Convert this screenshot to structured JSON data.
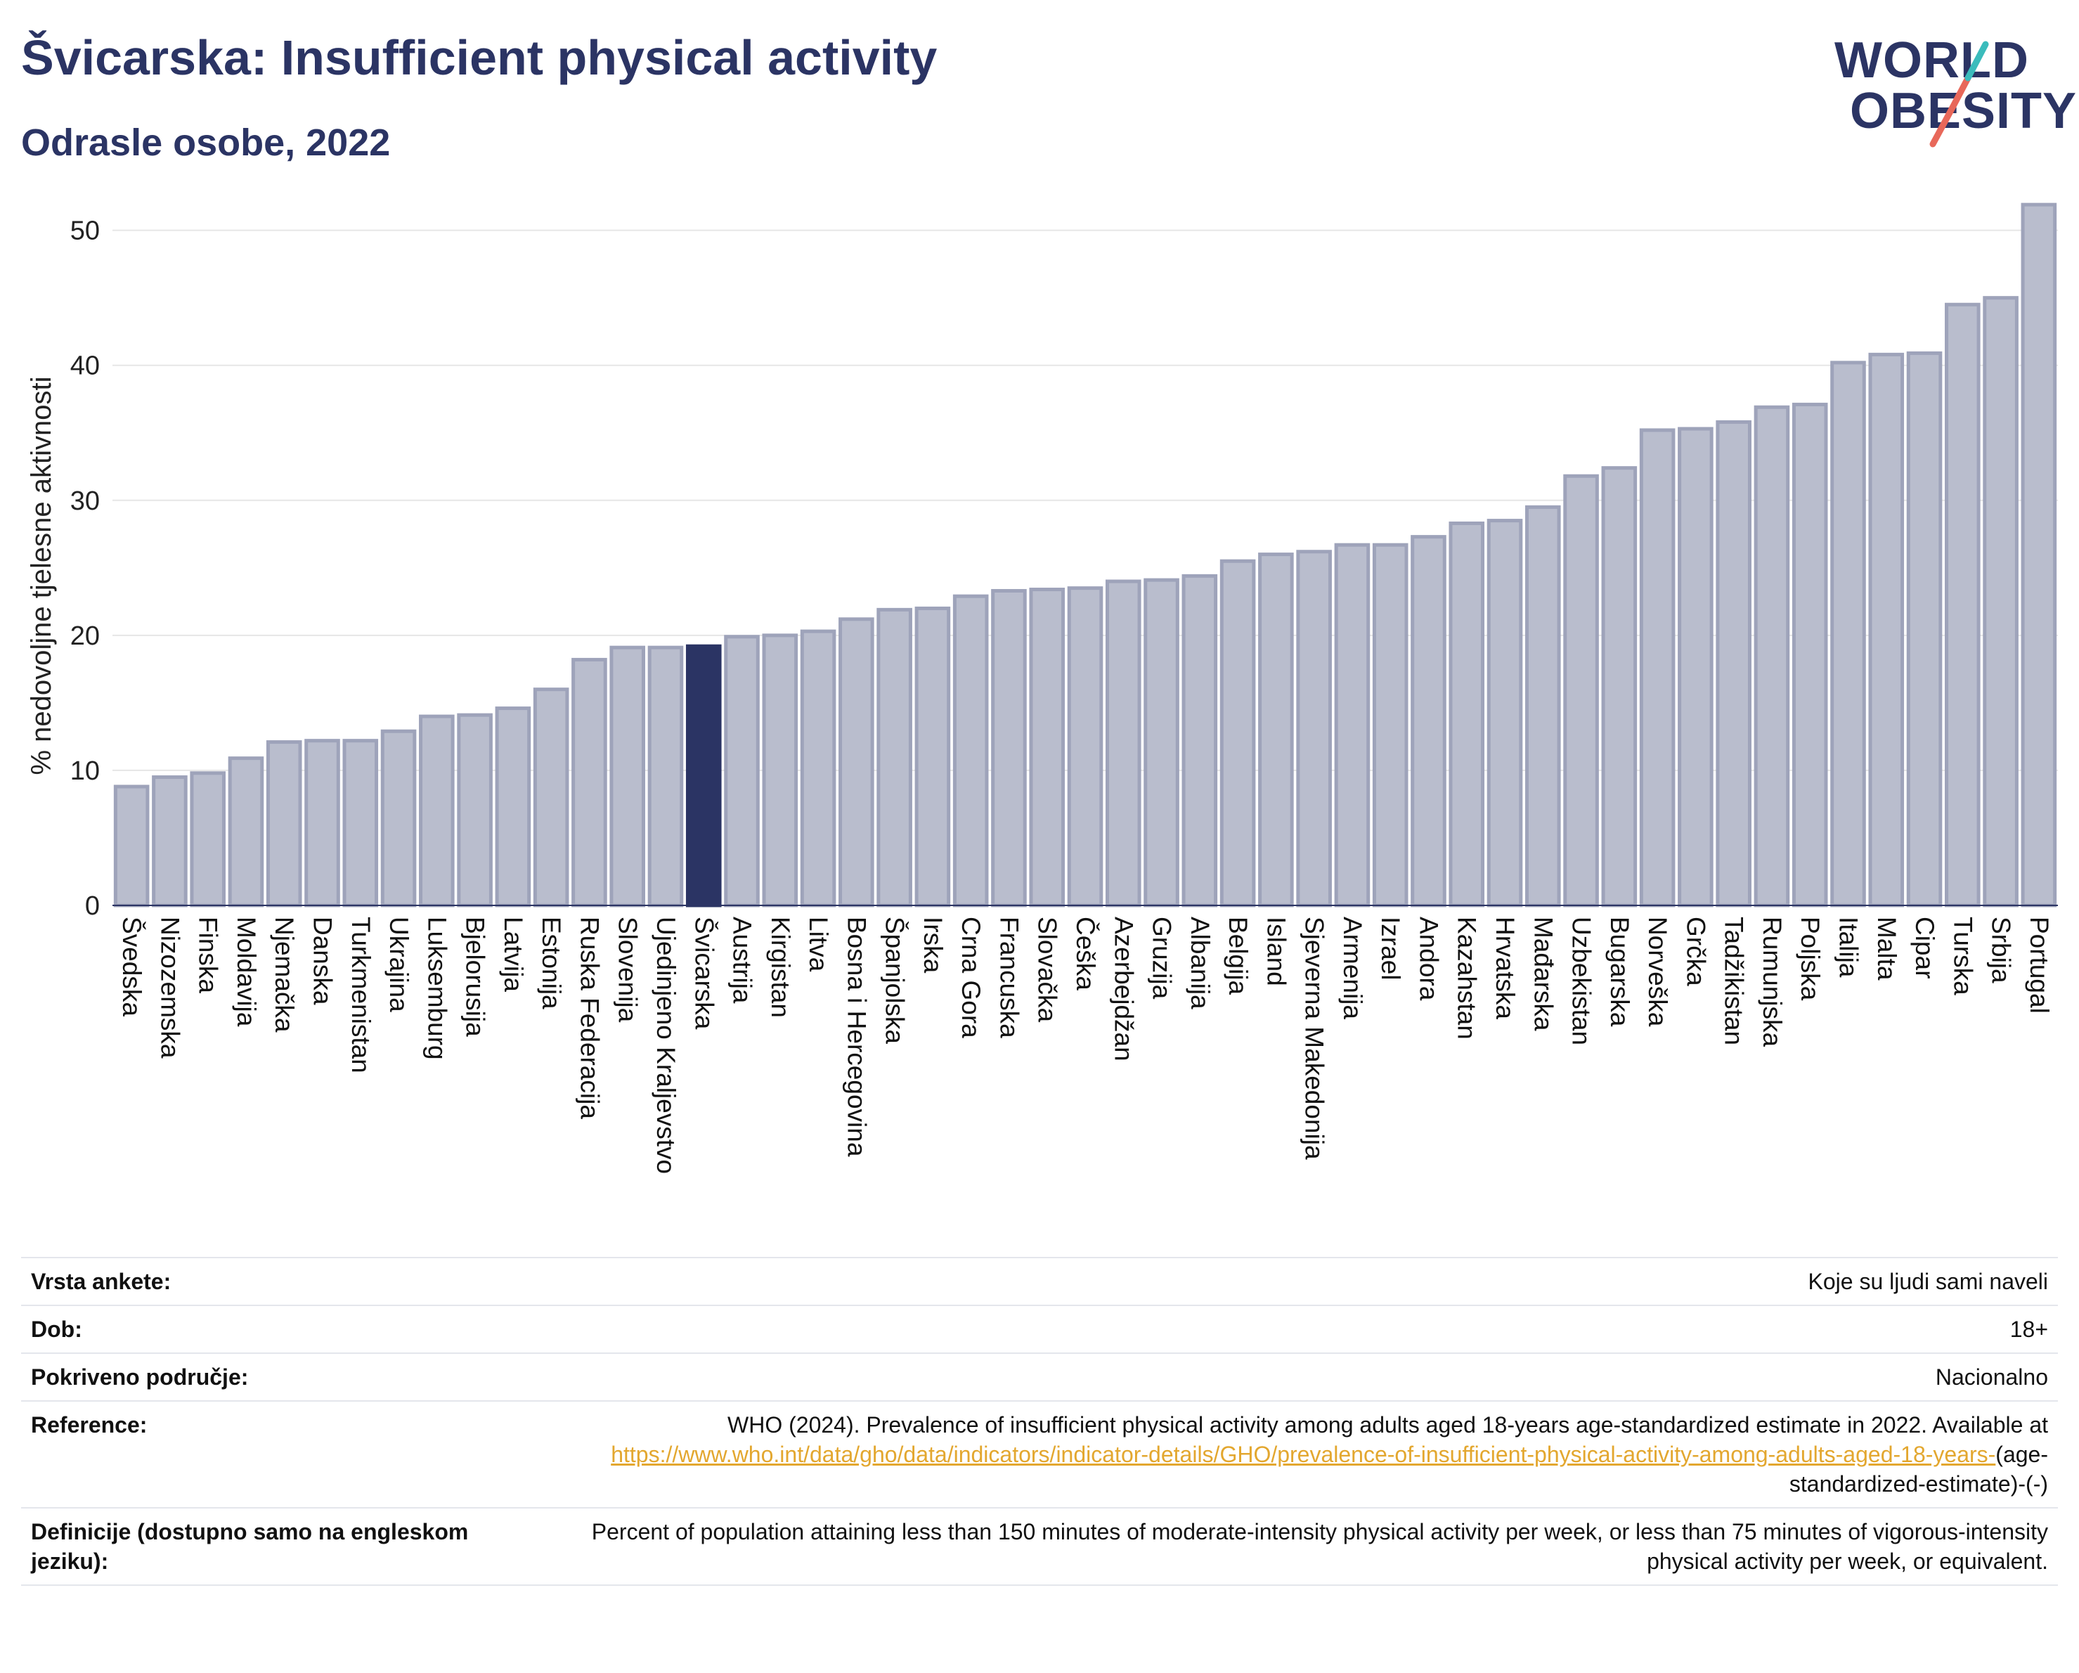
{
  "title": "Švicarska: Insufficient physical activity",
  "subtitle": "Odrasle osobe, 2022",
  "logo": {
    "line1": "WORLD",
    "line2": "OBESITY",
    "accent_colors": [
      "#3bbcbc",
      "#e8685a"
    ]
  },
  "colors": {
    "bar": "#b9bdcd",
    "bar_edge": "#9ea3ba",
    "highlight": "#2b3464",
    "grid": "#e6e6e6"
  },
  "chart_data": {
    "type": "bar",
    "ylabel": "% nedovoljne tjelesne aktivnosti",
    "ylim": [
      0,
      53
    ],
    "yticks": [
      0,
      10,
      20,
      30,
      40,
      50
    ],
    "grid": true,
    "highlight": "Švicarska",
    "categories": [
      "Švedska",
      "Nizozemska",
      "Finska",
      "Moldavija",
      "Njemačka",
      "Danska",
      "Turkmenistan",
      "Ukrajina",
      "Luksemburg",
      "Bjelorusija",
      "Latvija",
      "Estonija",
      "Ruska Federacija",
      "Slovenija",
      "Ujedinjeno Kraljevstvo",
      "Švicarska",
      "Austrija",
      "Kirgistan",
      "Litva",
      "Bosna i Hercegovina",
      "Španjolska",
      "Irska",
      "Crna Gora",
      "Francuska",
      "Slovačka",
      "Češka",
      "Azerbejdžan",
      "Gruzija",
      "Albanija",
      "Belgija",
      "Island",
      "Sjeverna Makedonija",
      "Armenija",
      "Izrael",
      "Andora",
      "Kazahstan",
      "Hrvatska",
      "Mađarska",
      "Uzbekistan",
      "Bugarska",
      "Norveška",
      "Grčka",
      "Tadžikistan",
      "Rumunjska",
      "Poljska",
      "Italija",
      "Malta",
      "Cipar",
      "Turska",
      "Srbija",
      "Portugal"
    ],
    "values": [
      8.8,
      9.5,
      9.8,
      10.9,
      12.1,
      12.2,
      12.2,
      12.9,
      14.0,
      14.1,
      14.6,
      16.0,
      18.2,
      19.1,
      19.1,
      19.2,
      19.9,
      20.0,
      20.3,
      21.2,
      21.9,
      22.0,
      22.9,
      23.3,
      23.4,
      23.5,
      24.0,
      24.1,
      24.4,
      25.5,
      26.0,
      26.2,
      26.7,
      26.7,
      27.3,
      28.3,
      28.5,
      29.5,
      31.8,
      32.4,
      35.2,
      35.3,
      35.8,
      36.9,
      37.1,
      40.2,
      40.8,
      40.9,
      44.5,
      45.0,
      51.9
    ]
  },
  "info": {
    "survey_type_label": "Vrsta ankete:",
    "survey_type_value": "Koje su ljudi sami naveli",
    "age_label": "Dob:",
    "age_value": "18+",
    "coverage_label": "Pokriveno područje:",
    "coverage_value": "Nacionalno",
    "reference_label": "Reference:",
    "reference_text": "WHO (2024). Prevalence of insufficient physical activity among adults aged 18-years age-standardized estimate in 2022. Available at",
    "reference_link": "https://www.who.int/data/gho/data/indicators/indicator-details/GHO/prevalence-of-insufficient-physical-activity-among-adults-aged-18-years-",
    "reference_suffix": "(age-standardized-estimate)-(-)",
    "definition_label": "Definicije (dostupno samo na engleskom jeziku):",
    "definition_value": "Percent of population attaining less than 150 minutes of moderate-intensity physical activity per week, or less than 75 minutes of vigorous-intensity physical activity per week, or equivalent."
  }
}
